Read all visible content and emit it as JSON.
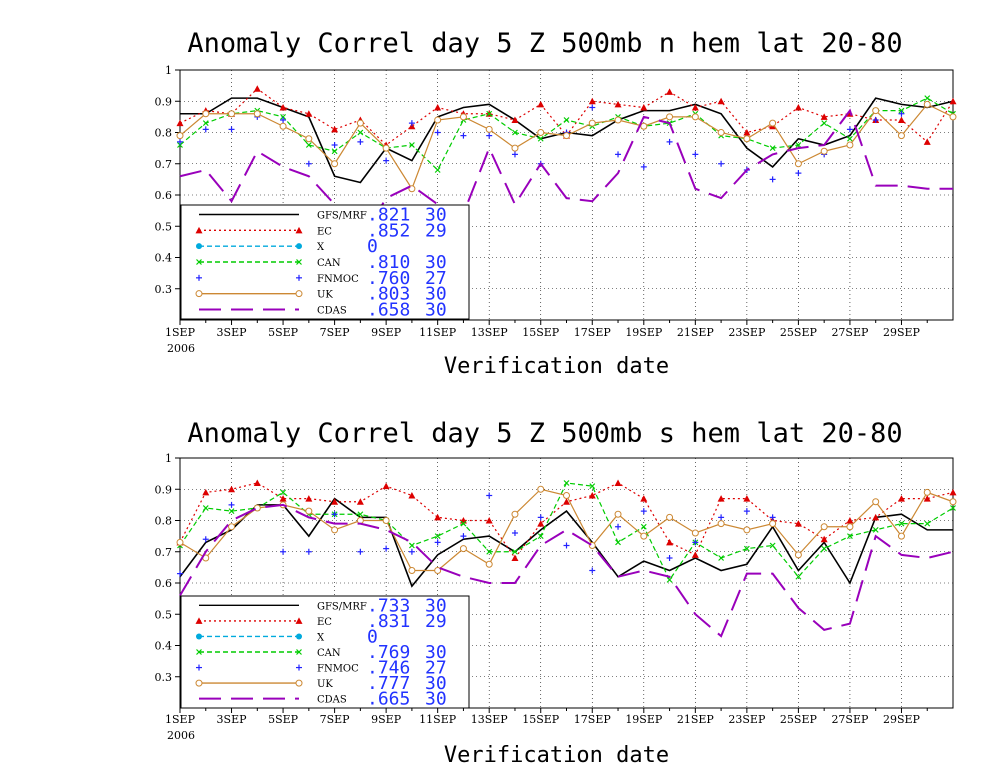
{
  "chart_data": [
    {
      "type": "line",
      "title": "Anomaly Correl  day 5  Z 500mb  n hem  lat 20-80",
      "xlabel": "Verification date",
      "x_ticks": [
        "1SEP",
        "3SEP",
        "5SEP",
        "7SEP",
        "9SEP",
        "11SEP",
        "13SEP",
        "15SEP",
        "17SEP",
        "19SEP",
        "21SEP",
        "23SEP",
        "25SEP",
        "27SEP",
        "29SEP"
      ],
      "x_year": "2006",
      "y_ticks": [
        "0.3",
        "0.4",
        "0.5",
        "0.6",
        "0.7",
        "0.8",
        "0.9",
        "1"
      ],
      "ylim": [
        0.2,
        1.0
      ],
      "xlim": [
        1,
        31
      ],
      "grid": true,
      "legend_position": "bottom-left",
      "series": [
        {
          "name": "GFS/MRF",
          "color": "#000000",
          "style": "solid",
          "marker": "none",
          "mean": ".821",
          "count": "30",
          "values": [
            0.86,
            0.86,
            0.91,
            0.91,
            0.88,
            0.85,
            0.66,
            0.64,
            0.75,
            0.71,
            0.85,
            0.88,
            0.89,
            0.84,
            0.78,
            0.8,
            0.79,
            0.84,
            0.87,
            0.87,
            0.89,
            0.86,
            0.75,
            0.69,
            0.78,
            0.76,
            0.79,
            0.91,
            0.89,
            0.88,
            0.9
          ]
        },
        {
          "name": "EC",
          "color": "#dd0000",
          "style": "dotted",
          "marker": "triangle",
          "mean": ".852",
          "count": "29",
          "values": [
            0.83,
            0.87,
            0.86,
            0.94,
            0.88,
            0.86,
            0.81,
            0.84,
            0.76,
            0.82,
            0.88,
            0.86,
            0.86,
            0.84,
            0.89,
            0.79,
            0.9,
            0.89,
            0.88,
            0.93,
            0.88,
            0.9,
            0.8,
            0.82,
            0.88,
            0.85,
            0.86,
            0.84,
            0.84,
            0.77,
            0.9
          ]
        },
        {
          "name": "X",
          "color": "#00aadd",
          "style": "dashed",
          "marker": "circle",
          "mean": "0",
          "count": "",
          "values": []
        },
        {
          "name": "CAN",
          "color": "#00cc00",
          "style": "dashed",
          "marker": "x",
          "mean": ".810",
          "count": "30",
          "values": [
            0.76,
            0.83,
            0.86,
            0.87,
            0.85,
            0.76,
            0.74,
            0.8,
            0.75,
            0.76,
            0.68,
            0.84,
            0.86,
            0.8,
            0.78,
            0.84,
            0.82,
            0.85,
            0.82,
            0.83,
            0.86,
            0.79,
            0.78,
            0.75,
            0.76,
            0.83,
            0.78,
            0.87,
            0.87,
            0.91,
            0.86
          ]
        },
        {
          "name": "FNMOC",
          "color": "#2222ff",
          "style": "none",
          "marker": "plus",
          "mean": ".760",
          "count": "27",
          "values": [
            0.77,
            0.81,
            0.81,
            0.85,
            0.84,
            0.7,
            0.76,
            0.77,
            0.71,
            0.83,
            0.8,
            0.79,
            0.79,
            0.73,
            0.7,
            0.8,
            0.88,
            0.73,
            0.69,
            0.77,
            0.73,
            0.7,
            0.68,
            0.65,
            0.67,
            0.73,
            0.81,
            0.84,
            0.86
          ]
        },
        {
          "name": "UK",
          "color": "#cc8833",
          "style": "solid",
          "marker": "circle-open",
          "mean": ".803",
          "count": "30",
          "values": [
            0.79,
            0.86,
            0.86,
            0.86,
            0.82,
            0.78,
            0.7,
            0.83,
            0.75,
            0.62,
            0.84,
            0.85,
            0.81,
            0.75,
            0.8,
            0.79,
            0.83,
            0.84,
            0.82,
            0.85,
            0.85,
            0.8,
            0.78,
            0.83,
            0.7,
            0.74,
            0.76,
            0.87,
            0.79,
            0.89,
            0.85
          ]
        },
        {
          "name": "CDAS",
          "color": "#9900bb",
          "style": "longdash",
          "marker": "none",
          "mean": ".658",
          "count": "30",
          "values": [
            0.66,
            0.68,
            0.58,
            0.74,
            0.69,
            0.66,
            0.57,
            0.45,
            0.59,
            0.63,
            0.57,
            0.54,
            0.75,
            0.57,
            0.7,
            0.59,
            0.58,
            0.67,
            0.85,
            0.83,
            0.62,
            0.59,
            0.68,
            0.73,
            0.75,
            0.76,
            0.87,
            0.63,
            0.63,
            0.62,
            0.62
          ]
        }
      ]
    },
    {
      "type": "line",
      "title": "Anomaly Correl  day 5  Z 500mb  s hem  lat 20-80",
      "xlabel": "Verification date",
      "x_ticks": [
        "1SEP",
        "3SEP",
        "5SEP",
        "7SEP",
        "9SEP",
        "11SEP",
        "13SEP",
        "15SEP",
        "17SEP",
        "19SEP",
        "21SEP",
        "23SEP",
        "25SEP",
        "27SEP",
        "29SEP"
      ],
      "x_year": "2006",
      "y_ticks": [
        "0.3",
        "0.4",
        "0.5",
        "0.6",
        "0.7",
        "0.8",
        "0.9",
        "1"
      ],
      "ylim": [
        0.2,
        1.0
      ],
      "xlim": [
        1,
        31
      ],
      "grid": true,
      "legend_position": "bottom-left",
      "series": [
        {
          "name": "GFS/MRF",
          "color": "#000000",
          "style": "solid",
          "marker": "none",
          "mean": ".733",
          "count": "30",
          "values": [
            0.62,
            0.73,
            0.77,
            0.85,
            0.85,
            0.75,
            0.87,
            0.81,
            0.81,
            0.59,
            0.69,
            0.74,
            0.75,
            0.7,
            0.77,
            0.83,
            0.73,
            0.62,
            0.67,
            0.64,
            0.68,
            0.64,
            0.66,
            0.78,
            0.64,
            0.73,
            0.6,
            0.81,
            0.82,
            0.77,
            0.77
          ]
        },
        {
          "name": "EC",
          "color": "#dd0000",
          "style": "dotted",
          "marker": "triangle",
          "mean": ".831",
          "count": "29",
          "values": [
            0.73,
            0.89,
            0.9,
            0.92,
            0.87,
            0.87,
            0.86,
            0.86,
            0.91,
            0.88,
            0.81,
            0.8,
            0.8,
            0.68,
            0.79,
            0.86,
            0.88,
            0.92,
            0.87,
            0.73,
            0.69,
            0.87,
            0.87,
            0.8,
            0.79,
            0.74,
            0.8,
            0.81,
            0.87,
            0.87,
            0.89
          ]
        },
        {
          "name": "X",
          "color": "#00aadd",
          "style": "dashed",
          "marker": "circle",
          "mean": "0",
          "count": "",
          "values": []
        },
        {
          "name": "CAN",
          "color": "#00cc00",
          "style": "dashed",
          "marker": "x",
          "mean": ".769",
          "count": "30",
          "values": [
            0.72,
            0.84,
            0.83,
            0.84,
            0.89,
            0.82,
            0.82,
            0.82,
            0.8,
            0.72,
            0.75,
            0.79,
            0.7,
            0.7,
            0.75,
            0.92,
            0.91,
            0.73,
            0.78,
            0.61,
            0.73,
            0.68,
            0.71,
            0.72,
            0.62,
            0.71,
            0.75,
            0.77,
            0.79,
            0.79,
            0.84
          ]
        },
        {
          "name": "FNMOC",
          "color": "#2222ff",
          "style": "none",
          "marker": "plus",
          "mean": ".746",
          "count": "27",
          "values": [
            0.63,
            0.74,
            0.85,
            0.84,
            0.7,
            0.7,
            0.82,
            0.7,
            0.71,
            0.7,
            0.73,
            0.75,
            0.88,
            0.76,
            0.81,
            0.72,
            0.64,
            0.78,
            0.83,
            0.68,
            0.73,
            0.81,
            0.83,
            0.81
          ]
        },
        {
          "name": "UK",
          "color": "#cc8833",
          "style": "solid",
          "marker": "circle-open",
          "mean": ".777",
          "count": "30",
          "values": [
            0.73,
            0.68,
            0.78,
            0.84,
            0.85,
            0.83,
            0.77,
            0.8,
            0.8,
            0.64,
            0.64,
            0.71,
            0.66,
            0.82,
            0.9,
            0.88,
            0.72,
            0.82,
            0.75,
            0.81,
            0.76,
            0.79,
            0.77,
            0.79,
            0.69,
            0.78,
            0.78,
            0.86,
            0.75,
            0.89,
            0.86
          ]
        },
        {
          "name": "CDAS",
          "color": "#9900bb",
          "style": "longdash",
          "marker": "none",
          "mean": ".665",
          "count": "30",
          "values": [
            0.56,
            0.7,
            0.8,
            0.84,
            0.85,
            0.81,
            0.79,
            0.79,
            0.77,
            0.73,
            0.65,
            0.62,
            0.6,
            0.6,
            0.72,
            0.77,
            0.72,
            0.62,
            0.64,
            0.62,
            0.5,
            0.43,
            0.63,
            0.63,
            0.52,
            0.45,
            0.47,
            0.75,
            0.69,
            0.68,
            0.7
          ]
        }
      ]
    }
  ]
}
